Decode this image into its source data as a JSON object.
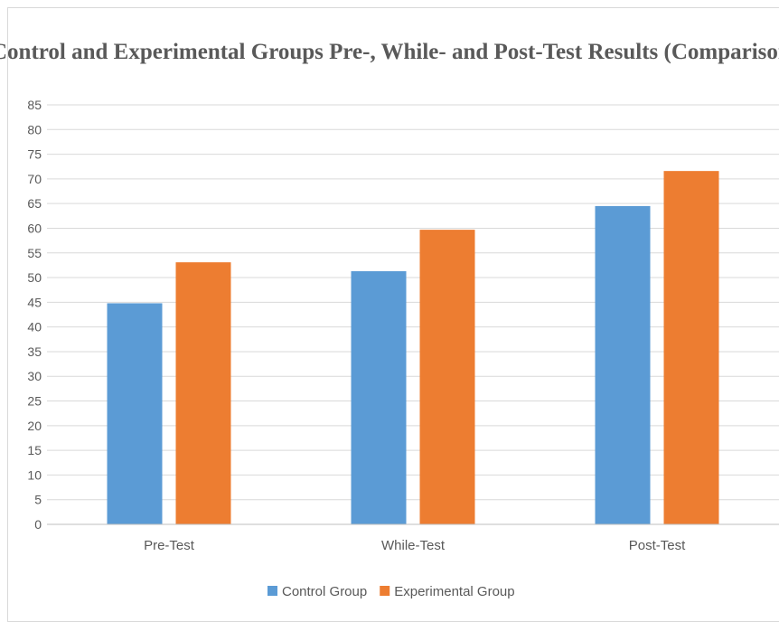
{
  "chart_data": {
    "type": "bar",
    "title": "Control and Experimental Groups Pre-, While- and Post-Test Results (Comparison)",
    "categories": [
      "Pre-Test",
      "While-Test",
      "Post-Test"
    ],
    "series": [
      {
        "name": "Control Group",
        "color": "#5b9bd5",
        "values": [
          44.8,
          51.3,
          64.5
        ]
      },
      {
        "name": "Experimental Group",
        "color": "#ed7d31",
        "values": [
          53.1,
          59.7,
          71.6
        ]
      }
    ],
    "ylim": [
      0,
      85
    ],
    "ytick_step": 5,
    "yticks": [
      "0",
      "5",
      "10",
      "15",
      "20",
      "25",
      "30",
      "35",
      "40",
      "45",
      "50",
      "55",
      "60",
      "65",
      "70",
      "75",
      "80",
      "85"
    ],
    "grid": true,
    "legend_position": "bottom",
    "xlabel": "",
    "ylabel": ""
  }
}
